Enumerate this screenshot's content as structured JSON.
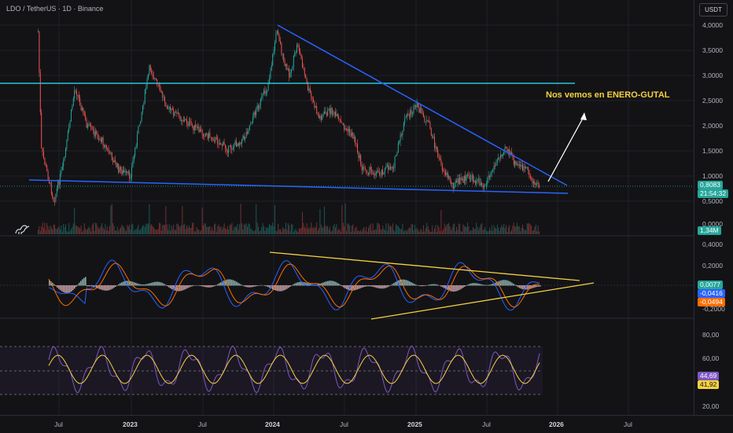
{
  "header": {
    "title": "LDO / TetherUS · 1D · Binance",
    "currency_button": "USDT"
  },
  "annotation": {
    "text": "Nos vemos en ENERO-GUTAL"
  },
  "price_axis": {
    "ticks": [
      "4,0000",
      "3,5000",
      "3,0000",
      "2,5000",
      "2,0000",
      "1,5000",
      "1,0000",
      "0,5000",
      "0,0000"
    ]
  },
  "price_badges": {
    "last_price": "0,8083",
    "countdown": "21:54:32",
    "volume": "1,34M"
  },
  "macd_axis": {
    "ticks": [
      "0,4000",
      "0,2000",
      "-0,2000"
    ]
  },
  "macd_badges": {
    "histogram": "0,0077",
    "macd": "-0,0416",
    "signal": "-0,0494"
  },
  "rsi_axis": {
    "ticks": [
      "80,00",
      "60,00",
      "20,00"
    ]
  },
  "rsi_badges": {
    "rsi": "44,69",
    "ma": "41,92"
  },
  "time_axis": {
    "labels": [
      "Jul",
      "2023",
      "Jul",
      "2024",
      "Jul",
      "2025",
      "Jul",
      "2026",
      "Jul"
    ]
  },
  "colors": {
    "up": "#26a69a",
    "down": "#ef5350",
    "trendline": "#2962ff",
    "resistance": "#26c6da",
    "triangle": "#f5d140",
    "rsi": "#7e57c2",
    "rsi_ma": "#f5d140",
    "background": "#131316"
  }
}
